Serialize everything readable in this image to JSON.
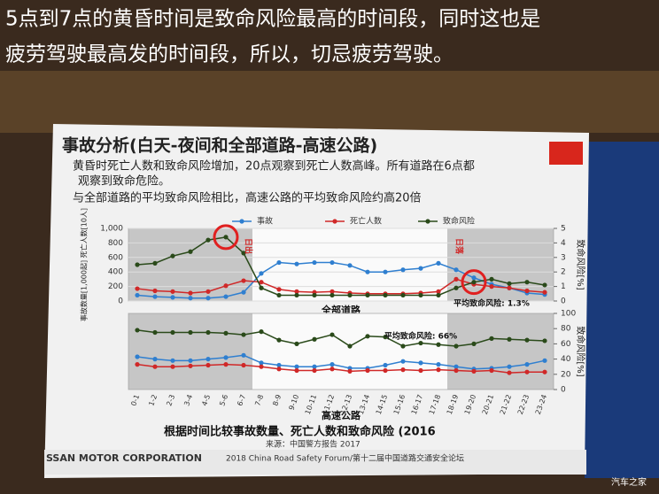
{
  "caption": {
    "lines": [
      "5点到7点的黄昏时间是致命风险最高的时间段，同时这也是",
      "疲劳驾驶最高发的时间段，所以，切忌疲劳驾驶。"
    ]
  },
  "slide": {
    "title": "事故分析(白天-夜间和全部道路-高速公路)",
    "bullets": [
      "黄昏时死亡人数和致命风险增加，20点观察到死亡人数高峰。所有道路在6点都",
      "观察到致命危险。",
      "与全部道路的平均致命风险相比，高速公路的平均致命风险约高20倍"
    ],
    "footer": "根据时间比较事故数量、死亡人数和致命风险 (2016",
    "source": "来源：中国警方报告 2017",
    "company": "SSAN MOTOR CORPORATION",
    "forum": "2018 China Road Safety Forum/第十二届中国道路交通安全论坛"
  },
  "watermark": "汽车之家",
  "chart_data": [
    {
      "type": "line",
      "xlabel": "全部道路",
      "ylabel": "事故数量[1,000起] 死亡人数[10人]",
      "y2label": "致命风险[%]",
      "annotations": [
        "平均致命风险: 1.3%",
        "日出",
        "日落"
      ],
      "categories": [
        "0-1",
        "1-2",
        "2-3",
        "3-4",
        "4-5",
        "5-6",
        "6-7",
        "7-8",
        "8-9",
        "9-10",
        "10-11",
        "11-12",
        "12-13",
        "13-14",
        "14-15",
        "15-16",
        "16-17",
        "17-18",
        "18-19",
        "19-20",
        "20-21",
        "21-22",
        "22-23",
        "23-24"
      ],
      "ylim": [
        0,
        1000
      ],
      "yticks": [
        0,
        200,
        400,
        600,
        800,
        {
          "value": 1000,
          "label": "1,000"
        }
      ],
      "y2lim": [
        0,
        5
      ],
      "y2ticks": [
        0,
        1,
        2,
        3,
        4,
        5
      ],
      "series": [
        {
          "name": "事故",
          "color": "#2f7fd0",
          "values": [
            80,
            60,
            50,
            40,
            40,
            60,
            120,
            380,
            530,
            510,
            530,
            530,
            490,
            400,
            400,
            430,
            450,
            520,
            430,
            320,
            230,
            180,
            110,
            90
          ]
        },
        {
          "name": "死亡人数",
          "color": "#d02828",
          "values": [
            170,
            140,
            130,
            110,
            130,
            210,
            280,
            260,
            160,
            130,
            120,
            130,
            110,
            100,
            100,
            100,
            110,
            130,
            300,
            230,
            200,
            180,
            140,
            120
          ]
        },
        {
          "name": "致命风险",
          "color": "#2a4a1a",
          "axis": "y2",
          "values": [
            2.5,
            2.6,
            3.1,
            3.4,
            4.2,
            4.4,
            3.3,
            0.9,
            0.4,
            0.4,
            0.4,
            0.4,
            0.4,
            0.4,
            0.4,
            0.4,
            0.4,
            0.4,
            0.9,
            1.3,
            1.5,
            1.2,
            1.3,
            1.1
          ]
        }
      ]
    },
    {
      "type": "line",
      "xlabel": "高速公路",
      "y2label": "致命风险[%]",
      "annotations": [
        "平均致命风险: 66%"
      ],
      "categories": [
        "0-1",
        "1-2",
        "2-3",
        "3-4",
        "4-5",
        "5-6",
        "6-7",
        "7-8",
        "8-9",
        "9-10",
        "10-11",
        "11-12",
        "12-13",
        "13-14",
        "14-15",
        "15-16",
        "16-17",
        "17-18",
        "18-19",
        "19-20",
        "20-21",
        "21-22",
        "22-23",
        "23-24"
      ],
      "y2lim": [
        0,
        100
      ],
      "y2ticks": [
        0,
        20,
        40,
        60,
        80,
        100
      ],
      "series": [
        {
          "name": "事故",
          "color": "#2f7fd0",
          "axis": "y2",
          "values": [
            43,
            40,
            38,
            38,
            40,
            42,
            45,
            35,
            32,
            30,
            30,
            33,
            28,
            28,
            32,
            37,
            35,
            33,
            30,
            27,
            28,
            30,
            33,
            38
          ]
        },
        {
          "name": "死亡人数",
          "color": "#d02828",
          "axis": "y2",
          "values": [
            33,
            30,
            30,
            31,
            32,
            33,
            32,
            30,
            27,
            25,
            25,
            27,
            24,
            25,
            25,
            26,
            25,
            26,
            25,
            24,
            25,
            22,
            23,
            23
          ]
        },
        {
          "name": "致命风险",
          "color": "#2a4a1a",
          "axis": "y2",
          "values": [
            78,
            75,
            75,
            75,
            75,
            74,
            72,
            76,
            65,
            60,
            66,
            72,
            57,
            70,
            69,
            57,
            61,
            59,
            57,
            60,
            67,
            66,
            65,
            64
          ]
        }
      ]
    }
  ]
}
